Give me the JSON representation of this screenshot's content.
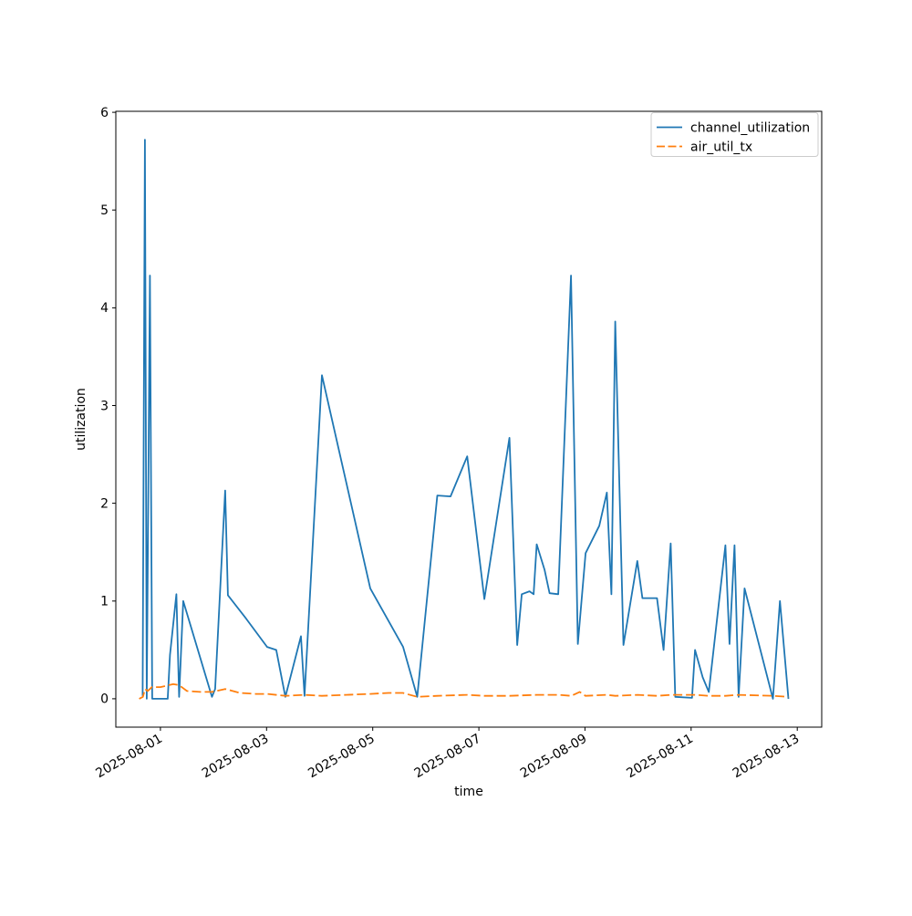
{
  "figure": {
    "background": "#ffffff",
    "title": ""
  },
  "chart_data": {
    "type": "line",
    "title": "",
    "xlabel": "time",
    "ylabel": "utilization",
    "grid": false,
    "legend_position": "upper right",
    "x_unit": "days since 2025-08-01 00:00",
    "xlim": [
      -0.84,
      12.46
    ],
    "ylim": [
      -0.29,
      6.01
    ],
    "y_ticks": [
      0,
      1,
      2,
      3,
      4,
      5,
      6
    ],
    "x_ticks": [
      {
        "t": 0,
        "label": "2025-08-01"
      },
      {
        "t": 2,
        "label": "2025-08-03"
      },
      {
        "t": 4,
        "label": "2025-08-05"
      },
      {
        "t": 6,
        "label": "2025-08-07"
      },
      {
        "t": 8,
        "label": "2025-08-09"
      },
      {
        "t": 10,
        "label": "2025-08-11"
      },
      {
        "t": 12,
        "label": "2025-08-13"
      }
    ],
    "colors": {
      "series_blue": "#1f77b4",
      "series_orange": "#ff7f0e",
      "spine": "#000000",
      "legend_border": "#cccccc",
      "text": "#000000"
    },
    "series": [
      {
        "name": "channel_utilization",
        "color": "#1f77b4",
        "style": "solid",
        "points": [
          [
            -0.335,
            0.03
          ],
          [
            -0.292,
            5.72
          ],
          [
            -0.258,
            0.0
          ],
          [
            -0.198,
            4.33
          ],
          [
            -0.155,
            0.0
          ],
          [
            0.138,
            0.0
          ],
          [
            0.18,
            0.45
          ],
          [
            0.301,
            1.07
          ],
          [
            0.352,
            0.02
          ],
          [
            0.43,
            1.0
          ],
          [
            0.971,
            0.02
          ],
          [
            1.031,
            0.1
          ],
          [
            1.221,
            2.13
          ],
          [
            1.272,
            1.06
          ],
          [
            1.616,
            0.82
          ],
          [
            2.011,
            0.53
          ],
          [
            2.183,
            0.5
          ],
          [
            2.355,
            0.02
          ],
          [
            2.648,
            0.64
          ],
          [
            2.716,
            0.03
          ],
          [
            3.043,
            3.31
          ],
          [
            3.954,
            1.13
          ],
          [
            4.573,
            0.53
          ],
          [
            4.839,
            0.02
          ],
          [
            5.218,
            2.08
          ],
          [
            5.467,
            2.07
          ],
          [
            5.781,
            2.48
          ],
          [
            6.103,
            1.02
          ],
          [
            6.576,
            2.67
          ],
          [
            6.722,
            0.55
          ],
          [
            6.808,
            1.07
          ],
          [
            6.954,
            1.1
          ],
          [
            7.031,
            1.07
          ],
          [
            7.091,
            1.58
          ],
          [
            7.238,
            1.32
          ],
          [
            7.332,
            1.08
          ],
          [
            7.495,
            1.07
          ],
          [
            7.736,
            4.33
          ],
          [
            7.865,
            0.56
          ],
          [
            8.011,
            1.49
          ],
          [
            8.269,
            1.77
          ],
          [
            8.412,
            2.11
          ],
          [
            8.498,
            1.07
          ],
          [
            8.57,
            3.86
          ],
          [
            8.724,
            0.55
          ],
          [
            8.986,
            1.41
          ],
          [
            9.082,
            1.03
          ],
          [
            9.357,
            1.03
          ],
          [
            9.481,
            0.5
          ],
          [
            9.615,
            1.59
          ],
          [
            9.701,
            0.02
          ],
          [
            10.017,
            0.01
          ],
          [
            10.074,
            0.5
          ],
          [
            10.217,
            0.22
          ],
          [
            10.332,
            0.07
          ],
          [
            10.646,
            1.57
          ],
          [
            10.722,
            0.56
          ],
          [
            10.818,
            1.57
          ],
          [
            10.894,
            0.02
          ],
          [
            11.007,
            1.13
          ],
          [
            11.54,
            0.0
          ],
          [
            11.673,
            1.0
          ],
          [
            11.832,
            0.0
          ]
        ]
      },
      {
        "name": "air_util_tx",
        "color": "#ff7f0e",
        "style": "dashed",
        "points": [
          [
            -0.4,
            0.0
          ],
          [
            -0.33,
            0.02
          ],
          [
            -0.29,
            0.1
          ],
          [
            -0.24,
            0.08
          ],
          [
            -0.16,
            0.12
          ],
          [
            0.0,
            0.12
          ],
          [
            0.24,
            0.15
          ],
          [
            0.35,
            0.14
          ],
          [
            0.5,
            0.08
          ],
          [
            0.75,
            0.07
          ],
          [
            0.97,
            0.07
          ],
          [
            1.22,
            0.1
          ],
          [
            1.5,
            0.06
          ],
          [
            1.8,
            0.05
          ],
          [
            2.01,
            0.05
          ],
          [
            2.36,
            0.03
          ],
          [
            2.72,
            0.04
          ],
          [
            3.04,
            0.03
          ],
          [
            3.5,
            0.04
          ],
          [
            3.95,
            0.05
          ],
          [
            4.3,
            0.06
          ],
          [
            4.57,
            0.06
          ],
          [
            4.84,
            0.02
          ],
          [
            5.22,
            0.03
          ],
          [
            5.78,
            0.04
          ],
          [
            6.1,
            0.03
          ],
          [
            6.58,
            0.03
          ],
          [
            7.09,
            0.04
          ],
          [
            7.5,
            0.04
          ],
          [
            7.74,
            0.03
          ],
          [
            7.9,
            0.07
          ],
          [
            8.01,
            0.03
          ],
          [
            8.41,
            0.04
          ],
          [
            8.57,
            0.03
          ],
          [
            8.99,
            0.04
          ],
          [
            9.36,
            0.03
          ],
          [
            9.62,
            0.04
          ],
          [
            10.07,
            0.04
          ],
          [
            10.33,
            0.03
          ],
          [
            10.65,
            0.03
          ],
          [
            10.89,
            0.04
          ],
          [
            11.54,
            0.03
          ],
          [
            11.83,
            0.02
          ]
        ]
      }
    ],
    "legend": {
      "entries": [
        "channel_utilization",
        "air_util_tx"
      ]
    }
  }
}
